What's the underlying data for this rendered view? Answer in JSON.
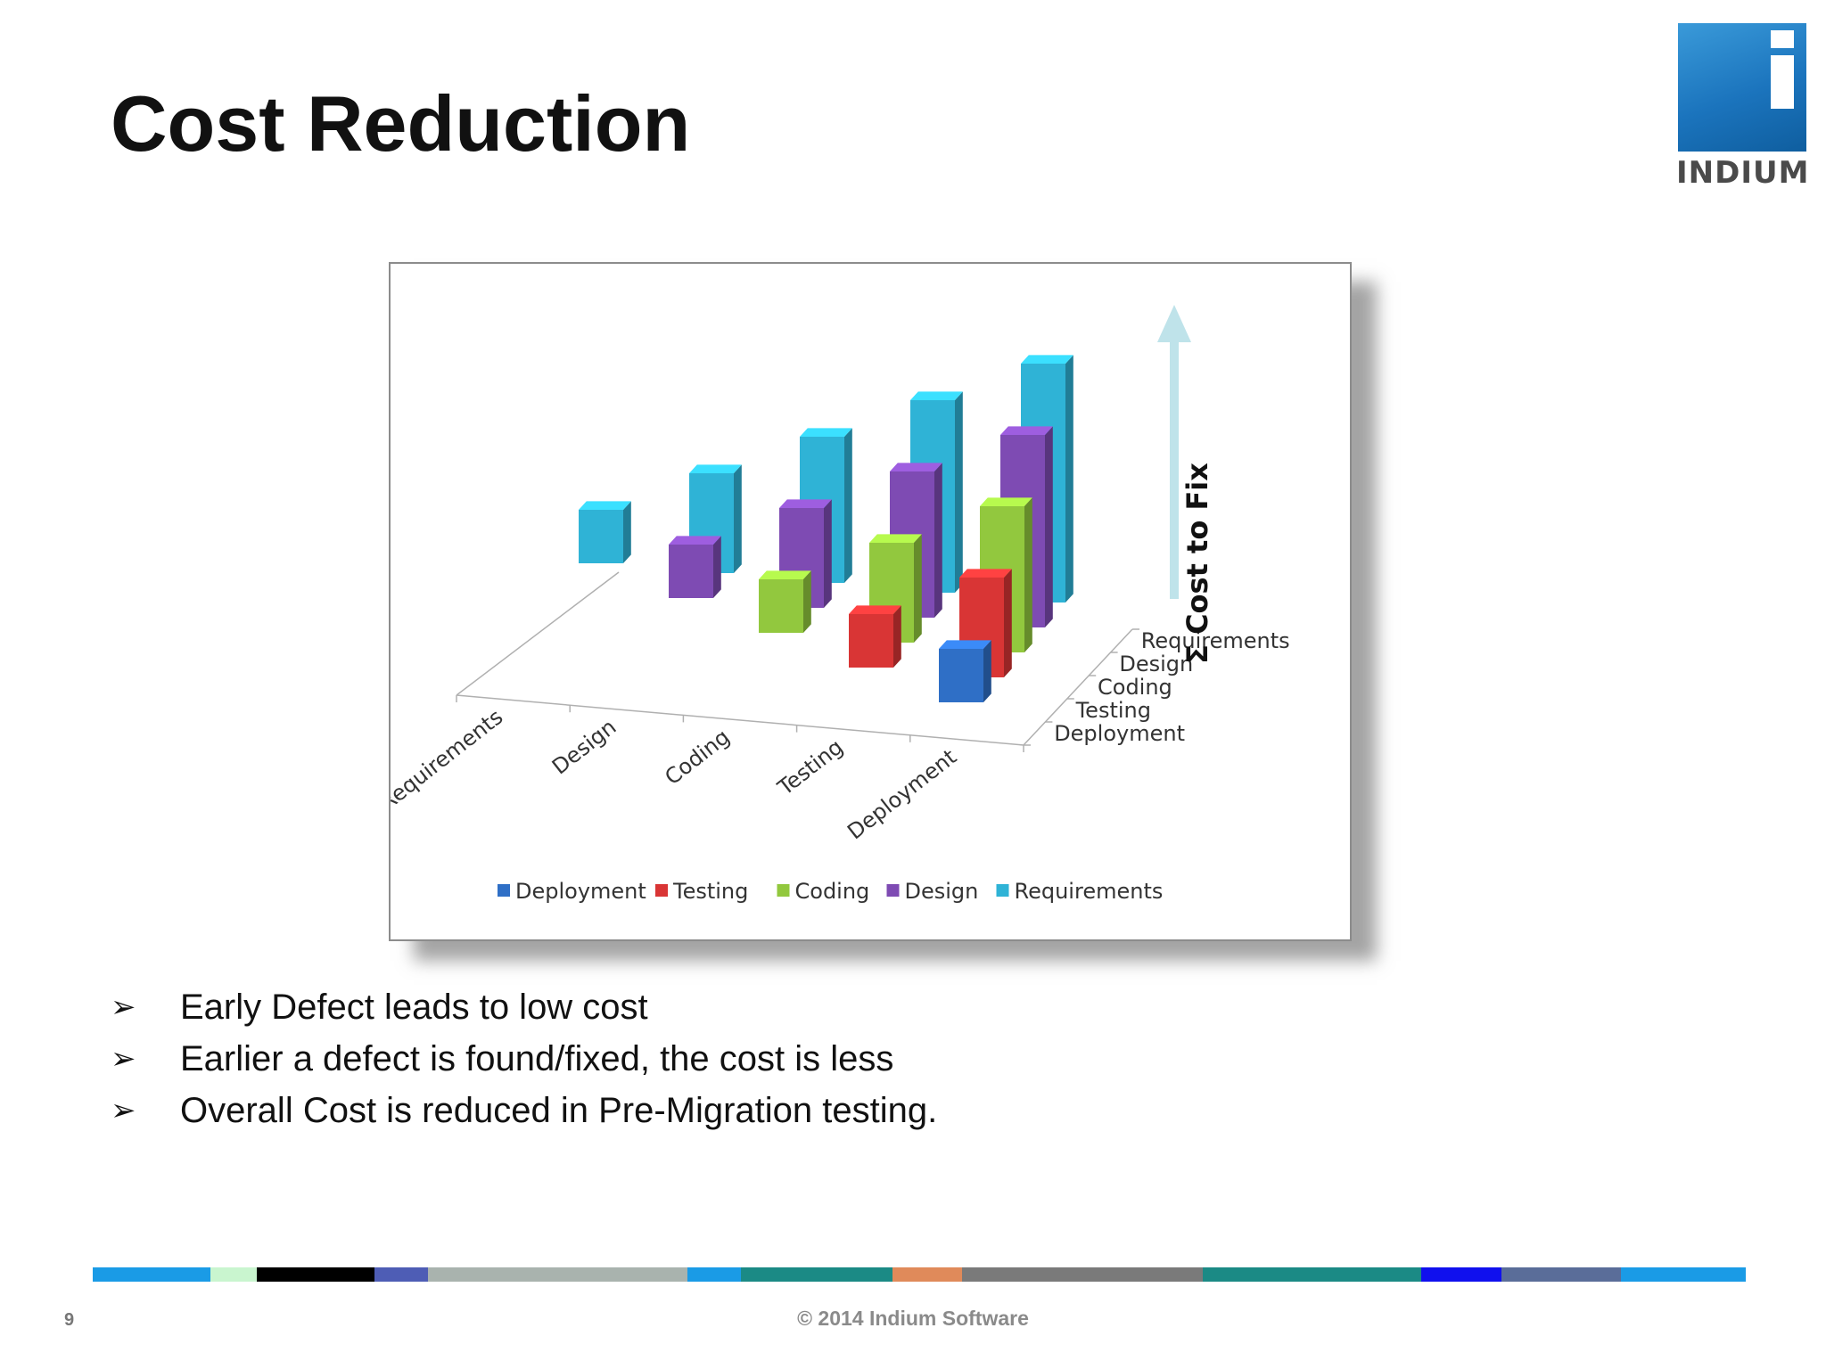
{
  "slide": {
    "title": "Cost Reduction",
    "logo_text": "INDIUM",
    "page_number": "9",
    "footer": "© 2014 Indium Software",
    "bullets": [
      "Early Defect leads to low cost",
      "Earlier a defect is found/fixed, the cost is less",
      "Overall Cost is reduced in Pre-Migration testing."
    ],
    "bullet_mark": "➢",
    "strip_colors": [
      "#1a9be6",
      "#c9f5cf",
      "#000000",
      "#4e5db5",
      "#a9b3ae",
      "#1a9be6",
      "#1b8a85",
      "#e08a5a",
      "#7a7a7a",
      "#1b8a85",
      "#1010ee",
      "#5a6d99",
      "#1a9be6"
    ],
    "strip_widths": [
      132,
      52,
      132,
      60,
      290,
      60,
      170,
      78,
      270,
      244,
      90,
      134,
      140
    ]
  },
  "chart_data": {
    "type": "bar",
    "subtype": "3d-clustered-column",
    "axis_title": "Σ Cost to Fix",
    "x_categories": [
      "Requirements",
      "Design",
      "Coding",
      "Testing",
      "Deployment"
    ],
    "depth_categories": [
      "Deployment",
      "Testing",
      "Coding",
      "Design",
      "Requirements"
    ],
    "legend": [
      "Deployment",
      "Testing",
      "Coding",
      "Design",
      "Requirements"
    ],
    "legend_position": "bottom",
    "colors": {
      "Deployment": "#2f6fc6",
      "Testing": "#d93535",
      "Coding": "#92c83e",
      "Design": "#7e4bb3",
      "Requirements": "#2fb3d6"
    },
    "series": [
      {
        "name": "Requirements",
        "values": [
          1,
          2,
          3,
          4,
          5
        ]
      },
      {
        "name": "Design",
        "values": [
          null,
          1,
          2,
          3,
          4
        ]
      },
      {
        "name": "Coding",
        "values": [
          null,
          null,
          1,
          2,
          3
        ]
      },
      {
        "name": "Testing",
        "values": [
          null,
          null,
          null,
          1,
          2
        ]
      },
      {
        "name": "Deployment",
        "values": [
          null,
          null,
          null,
          null,
          1
        ]
      }
    ]
  }
}
